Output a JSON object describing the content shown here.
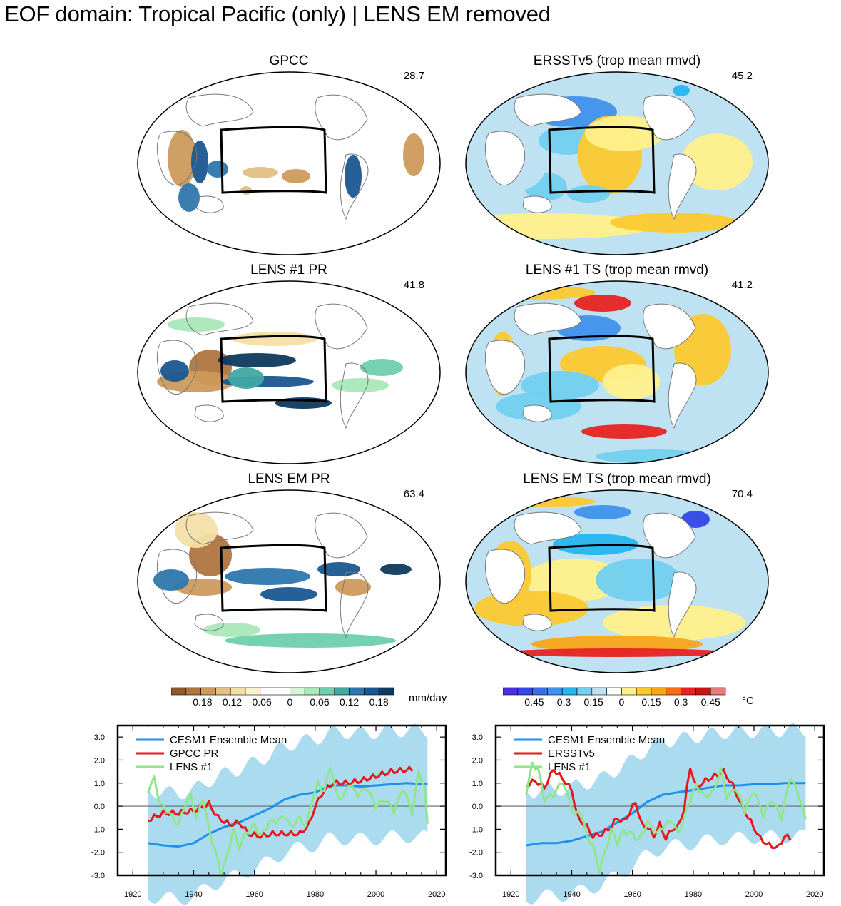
{
  "suptitle": "EOF domain: Tropical Pacific (only) | LENS EM removed",
  "maps": [
    {
      "id": "gpcc",
      "title": "GPCC",
      "pct": "28.7",
      "kind": "pr"
    },
    {
      "id": "ersst",
      "title": "ERSSTv5 (trop mean rmvd)",
      "pct": "45.2",
      "kind": "ts"
    },
    {
      "id": "lens1pr",
      "title": "LENS #1 PR",
      "pct": "41.8",
      "kind": "pr"
    },
    {
      "id": "lens1ts",
      "title": "LENS #1 TS (trop mean rmvd)",
      "pct": "41.2",
      "kind": "ts"
    },
    {
      "id": "lensempr",
      "title": "LENS EM PR",
      "pct": "63.4",
      "kind": "pr"
    },
    {
      "id": "lensemts",
      "title": "LENS EM TS (trop mean rmvd)",
      "pct": "70.4",
      "kind": "ts"
    }
  ],
  "colorbars": {
    "pr": {
      "unit": "mm/day",
      "colors": [
        "#8c5a2e",
        "#b0753f",
        "#cc9a5c",
        "#e2c084",
        "#f3dfa6",
        "#fbf2cc",
        "#ffffff",
        "#ffffff",
        "#d7f5d6",
        "#a9e8b9",
        "#6fcfad",
        "#3fa8a3",
        "#2e77ad",
        "#1a5790",
        "#0d3a5e"
      ],
      "labels": [
        "-0.18",
        "-0.12",
        "-0.06",
        "0",
        "0.06",
        "0.12",
        "0.18"
      ]
    },
    "ts": {
      "unit": "°C",
      "colors": [
        "#4b2fe0",
        "#3347e6",
        "#3b6fe6",
        "#3f91ec",
        "#27b4ef",
        "#72d0f0",
        "#bfe2f2",
        "#ffffff",
        "#fff08a",
        "#fcc92f",
        "#f9a518",
        "#f46e15",
        "#e82323",
        "#c71414",
        "#ea7b7b"
      ],
      "labels": [
        "-0.45",
        "-0.3",
        "-0.15",
        "0",
        "0.15",
        "0.3",
        "0.45"
      ]
    }
  },
  "chart_data": [
    {
      "type": "line",
      "x_start": 1925,
      "x_end": 2017,
      "x_step": 1,
      "xlim": [
        1915,
        2023
      ],
      "ylim": [
        -3,
        3.5
      ],
      "xticks": [
        1920,
        1940,
        1960,
        1980,
        2000,
        2020
      ],
      "yticks": [
        "3.0",
        "2.0",
        "1.0",
        "0.0",
        "-1.0",
        "-2.0",
        "-3.0"
      ],
      "legend": "top-left",
      "series": [
        {
          "name": "CESM1 Ensemble Mean",
          "color": "#1f8ff0",
          "knots": [
            [
              1925,
              -1.6
            ],
            [
              1930,
              -1.7
            ],
            [
              1935,
              -1.75
            ],
            [
              1940,
              -1.6
            ],
            [
              1945,
              -1.2
            ],
            [
              1950,
              -0.9
            ],
            [
              1955,
              -0.7
            ],
            [
              1960,
              -0.4
            ],
            [
              1965,
              -0.1
            ],
            [
              1970,
              0.3
            ],
            [
              1975,
              0.5
            ],
            [
              1980,
              0.6
            ],
            [
              1985,
              0.9
            ],
            [
              1990,
              0.9
            ],
            [
              1995,
              0.85
            ],
            [
              2000,
              0.9
            ],
            [
              2005,
              0.95
            ],
            [
              2010,
              1.0
            ],
            [
              2017,
              0.95
            ]
          ]
        },
        {
          "name": "GPCC PR",
          "color": "#e8161a",
          "knots": [
            [
              1925,
              -0.6
            ],
            [
              1930,
              -0.3
            ],
            [
              1935,
              -0.3
            ],
            [
              1940,
              -0.2
            ],
            [
              1945,
              0.1
            ],
            [
              1948,
              -0.5
            ],
            [
              1952,
              -0.8
            ],
            [
              1955,
              -0.7
            ],
            [
              1958,
              -1.2
            ],
            [
              1962,
              -1.3
            ],
            [
              1966,
              -1.2
            ],
            [
              1970,
              -1.2
            ],
            [
              1975,
              -1.2
            ],
            [
              1978,
              -0.8
            ],
            [
              1980,
              0.0
            ],
            [
              1983,
              0.7
            ],
            [
              1986,
              1.0
            ],
            [
              1990,
              1.0
            ],
            [
              1995,
              1.1
            ],
            [
              2000,
              1.3
            ],
            [
              2005,
              1.5
            ],
            [
              2012,
              1.6
            ]
          ]
        },
        {
          "name": "LENS #1",
          "color": "#8fe68a",
          "knots": [
            [
              1925,
              0.7
            ],
            [
              1927,
              1.2
            ],
            [
              1929,
              0.1
            ],
            [
              1932,
              -0.3
            ],
            [
              1935,
              -0.8
            ],
            [
              1937,
              0.0
            ],
            [
              1939,
              0.5
            ],
            [
              1941,
              -0.6
            ],
            [
              1943,
              0.4
            ],
            [
              1945,
              -1.0
            ],
            [
              1947,
              -1.9
            ],
            [
              1949,
              -2.9
            ],
            [
              1951,
              -2.2
            ],
            [
              1953,
              -1.0
            ],
            [
              1955,
              -1.8
            ],
            [
              1957,
              -1.2
            ],
            [
              1960,
              -0.8
            ],
            [
              1962,
              -1.3
            ],
            [
              1965,
              -0.7
            ],
            [
              1968,
              -0.6
            ],
            [
              1970,
              -0.4
            ],
            [
              1972,
              -0.9
            ],
            [
              1975,
              -0.5
            ],
            [
              1977,
              -0.9
            ],
            [
              1979,
              0.3
            ],
            [
              1981,
              1.0
            ],
            [
              1983,
              0.6
            ],
            [
              1985,
              1.8
            ],
            [
              1987,
              0.5
            ],
            [
              1989,
              0.3
            ],
            [
              1991,
              1.0
            ],
            [
              1994,
              0.5
            ],
            [
              1997,
              0.8
            ],
            [
              2000,
              0.0
            ],
            [
              2003,
              0.3
            ],
            [
              2006,
              -0.2
            ],
            [
              2009,
              0.8
            ],
            [
              2012,
              -0.3
            ],
            [
              2014,
              1.5
            ],
            [
              2016,
              0.8
            ],
            [
              2017,
              -0.8
            ]
          ]
        }
      ],
      "spread": {
        "color": "#a6d9ee",
        "lower": -2.3,
        "upper": 2.3
      }
    },
    {
      "type": "line",
      "x_start": 1925,
      "x_end": 2017,
      "x_step": 1,
      "xlim": [
        1915,
        2023
      ],
      "ylim": [
        -3,
        3.5
      ],
      "xticks": [
        1920,
        1940,
        1960,
        1980,
        2000,
        2020
      ],
      "yticks": [
        "3.0",
        "2.0",
        "1.0",
        "0.0",
        "-1.0",
        "-2.0",
        "-3.0"
      ],
      "legend": "top-left",
      "series": [
        {
          "name": "CESM1 Ensemble Mean",
          "color": "#1f8ff0",
          "knots": [
            [
              1925,
              -1.7
            ],
            [
              1930,
              -1.6
            ],
            [
              1935,
              -1.6
            ],
            [
              1940,
              -1.5
            ],
            [
              1945,
              -1.3
            ],
            [
              1950,
              -1.1
            ],
            [
              1955,
              -0.7
            ],
            [
              1960,
              -0.3
            ],
            [
              1965,
              0.2
            ],
            [
              1970,
              0.5
            ],
            [
              1975,
              0.6
            ],
            [
              1980,
              0.7
            ],
            [
              1985,
              0.8
            ],
            [
              1990,
              0.9
            ],
            [
              1995,
              0.9
            ],
            [
              2000,
              0.95
            ],
            [
              2005,
              0.95
            ],
            [
              2010,
              1.0
            ],
            [
              2017,
              1.0
            ]
          ]
        },
        {
          "name": "ERSSTv5",
          "color": "#e8161a",
          "knots": [
            [
              1925,
              0.9
            ],
            [
              1928,
              1.1
            ],
            [
              1931,
              0.8
            ],
            [
              1934,
              1.6
            ],
            [
              1937,
              1.2
            ],
            [
              1940,
              0.7
            ],
            [
              1942,
              -0.5
            ],
            [
              1945,
              -0.9
            ],
            [
              1947,
              -1.3
            ],
            [
              1950,
              -1.2
            ],
            [
              1953,
              -0.9
            ],
            [
              1955,
              -0.5
            ],
            [
              1957,
              -0.7
            ],
            [
              1959,
              -0.3
            ],
            [
              1961,
              0.2
            ],
            [
              1963,
              -0.8
            ],
            [
              1965,
              -0.9
            ],
            [
              1967,
              -1.3
            ],
            [
              1969,
              -0.8
            ],
            [
              1971,
              -1.4
            ],
            [
              1973,
              -1.0
            ],
            [
              1975,
              -0.9
            ],
            [
              1977,
              -0.1
            ],
            [
              1979,
              1.7
            ],
            [
              1981,
              0.8
            ],
            [
              1984,
              1.1
            ],
            [
              1987,
              1.3
            ],
            [
              1990,
              1.5
            ],
            [
              1993,
              0.9
            ],
            [
              1996,
              0.0
            ],
            [
              1999,
              -0.7
            ],
            [
              2002,
              -1.4
            ],
            [
              2005,
              -1.7
            ],
            [
              2008,
              -1.8
            ],
            [
              2010,
              -1.3
            ],
            [
              2012,
              -1.4
            ]
          ]
        },
        {
          "name": "LENS #1",
          "color": "#8fe68a",
          "knots": [
            [
              1925,
              0.6
            ],
            [
              1927,
              1.8
            ],
            [
              1929,
              1.6
            ],
            [
              1931,
              0.3
            ],
            [
              1934,
              0.5
            ],
            [
              1937,
              1.1
            ],
            [
              1939,
              0.3
            ],
            [
              1941,
              -0.4
            ],
            [
              1943,
              -0.2
            ],
            [
              1945,
              -1.3
            ],
            [
              1947,
              -1.7
            ],
            [
              1949,
              -2.8
            ],
            [
              1951,
              -2.0
            ],
            [
              1953,
              -1.0
            ],
            [
              1955,
              -1.6
            ],
            [
              1957,
              -1.1
            ],
            [
              1960,
              -1.2
            ],
            [
              1962,
              -1.5
            ],
            [
              1965,
              -0.7
            ],
            [
              1968,
              -1.2
            ],
            [
              1970,
              -0.9
            ],
            [
              1973,
              -0.6
            ],
            [
              1975,
              -1.2
            ],
            [
              1977,
              -0.5
            ],
            [
              1979,
              0.3
            ],
            [
              1981,
              0.9
            ],
            [
              1984,
              0.4
            ],
            [
              1987,
              0.7
            ],
            [
              1989,
              1.6
            ],
            [
              1991,
              0.4
            ],
            [
              1994,
              0.8
            ],
            [
              1997,
              -0.2
            ],
            [
              2000,
              0.7
            ],
            [
              2003,
              -0.4
            ],
            [
              2006,
              0.3
            ],
            [
              2009,
              -0.5
            ],
            [
              2012,
              1.3
            ],
            [
              2015,
              0.4
            ],
            [
              2017,
              -0.6
            ]
          ]
        }
      ],
      "spread": {
        "color": "#a6d9ee",
        "lower": -2.3,
        "upper": 2.3
      }
    }
  ]
}
